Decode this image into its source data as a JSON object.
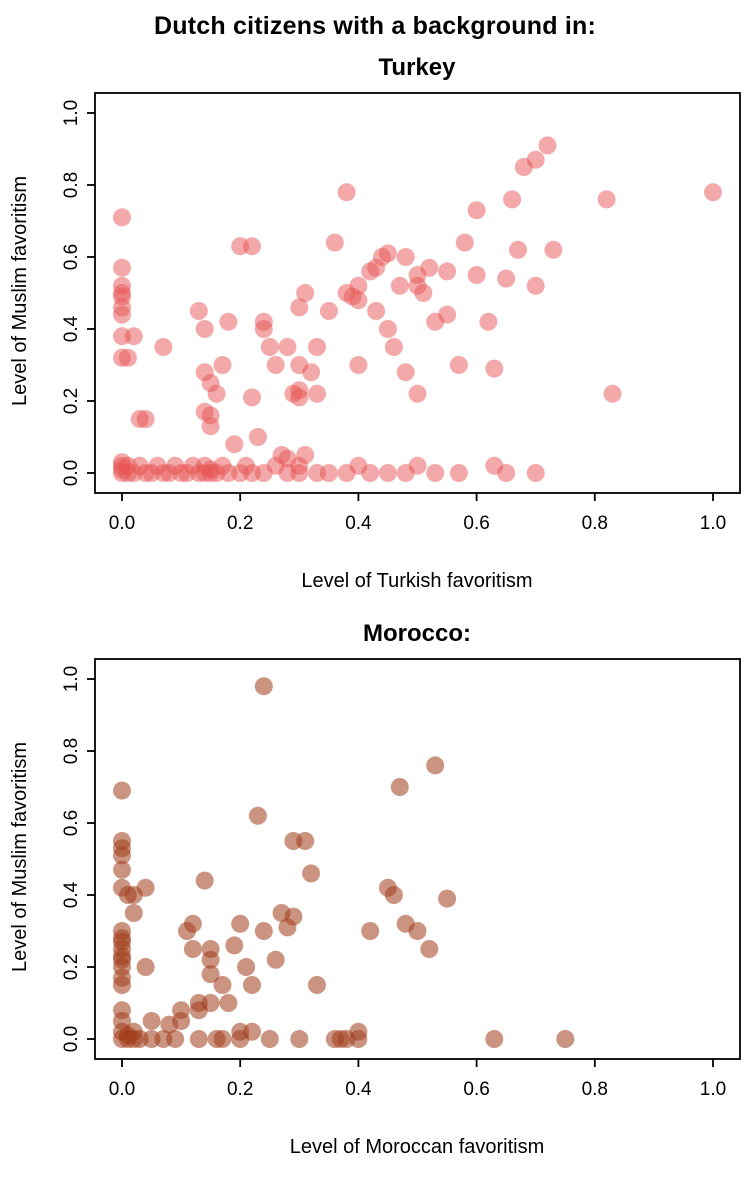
{
  "figure": {
    "title": "Dutch citizens with a background in:"
  },
  "chart_data": [
    {
      "type": "scatter",
      "title": "Turkey",
      "xlabel": "Level of Turkish favoritism",
      "ylabel": "Level of Muslim favoritism",
      "xlim": [
        0,
        1
      ],
      "ylim": [
        0,
        1
      ],
      "xticks": [
        0,
        0.2,
        0.4,
        0.6,
        0.8,
        1.0
      ],
      "yticks": [
        0,
        0.2,
        0.4,
        0.6,
        0.8,
        1.0
      ],
      "tick_labels": [
        "0.0",
        "0.2",
        "0.4",
        "0.6",
        "0.8",
        "1.0"
      ],
      "grid": false,
      "legend": "none",
      "point_color": "#e85453",
      "point_opacity": 0.5,
      "points": [
        [
          0.0,
          0.71
        ],
        [
          0.0,
          0.57
        ],
        [
          0.0,
          0.52
        ],
        [
          0.0,
          0.5
        ],
        [
          0.0,
          0.49
        ],
        [
          0.0,
          0.46
        ],
        [
          0.0,
          0.44
        ],
        [
          0.0,
          0.38
        ],
        [
          0.02,
          0.38
        ],
        [
          0.0,
          0.32
        ],
        [
          0.01,
          0.32
        ],
        [
          0.03,
          0.15
        ],
        [
          0.04,
          0.15
        ],
        [
          0.0,
          0.03
        ],
        [
          0.0,
          0.02
        ],
        [
          0.0,
          0.01
        ],
        [
          0.0,
          0.0
        ],
        [
          0.01,
          0.0
        ],
        [
          0.01,
          0.02
        ],
        [
          0.02,
          0.0
        ],
        [
          0.03,
          0.02
        ],
        [
          0.04,
          0.0
        ],
        [
          0.05,
          0.0
        ],
        [
          0.06,
          0.02
        ],
        [
          0.07,
          0.0
        ],
        [
          0.08,
          0.0
        ],
        [
          0.09,
          0.02
        ],
        [
          0.1,
          0.0
        ],
        [
          0.11,
          0.0
        ],
        [
          0.12,
          0.02
        ],
        [
          0.13,
          0.0
        ],
        [
          0.14,
          0.0
        ],
        [
          0.14,
          0.02
        ],
        [
          0.15,
          0.0
        ],
        [
          0.15,
          0.01
        ],
        [
          0.16,
          0.0
        ],
        [
          0.17,
          0.02
        ],
        [
          0.18,
          0.0
        ],
        [
          0.2,
          0.0
        ],
        [
          0.21,
          0.02
        ],
        [
          0.22,
          0.0
        ],
        [
          0.24,
          0.0
        ],
        [
          0.26,
          0.02
        ],
        [
          0.27,
          0.05
        ],
        [
          0.28,
          0.04
        ],
        [
          0.28,
          0.0
        ],
        [
          0.3,
          0.02
        ],
        [
          0.3,
          0.0
        ],
        [
          0.31,
          0.05
        ],
        [
          0.33,
          0.0
        ],
        [
          0.35,
          0.0
        ],
        [
          0.38,
          0.0
        ],
        [
          0.4,
          0.02
        ],
        [
          0.42,
          0.0
        ],
        [
          0.45,
          0.0
        ],
        [
          0.48,
          0.0
        ],
        [
          0.5,
          0.02
        ],
        [
          0.53,
          0.0
        ],
        [
          0.57,
          0.0
        ],
        [
          0.63,
          0.02
        ],
        [
          0.65,
          0.0
        ],
        [
          0.7,
          0.0
        ],
        [
          0.07,
          0.35
        ],
        [
          0.13,
          0.45
        ],
        [
          0.14,
          0.4
        ],
        [
          0.14,
          0.28
        ],
        [
          0.15,
          0.25
        ],
        [
          0.14,
          0.17
        ],
        [
          0.15,
          0.16
        ],
        [
          0.15,
          0.13
        ],
        [
          0.16,
          0.22
        ],
        [
          0.17,
          0.3
        ],
        [
          0.18,
          0.42
        ],
        [
          0.19,
          0.08
        ],
        [
          0.2,
          0.63
        ],
        [
          0.22,
          0.63
        ],
        [
          0.22,
          0.21
        ],
        [
          0.23,
          0.1
        ],
        [
          0.24,
          0.42
        ],
        [
          0.24,
          0.4
        ],
        [
          0.25,
          0.35
        ],
        [
          0.26,
          0.3
        ],
        [
          0.28,
          0.35
        ],
        [
          0.29,
          0.22
        ],
        [
          0.3,
          0.23
        ],
        [
          0.3,
          0.21
        ],
        [
          0.3,
          0.3
        ],
        [
          0.3,
          0.46
        ],
        [
          0.31,
          0.5
        ],
        [
          0.32,
          0.28
        ],
        [
          0.33,
          0.22
        ],
        [
          0.33,
          0.35
        ],
        [
          0.35,
          0.45
        ],
        [
          0.36,
          0.64
        ],
        [
          0.38,
          0.78
        ],
        [
          0.38,
          0.5
        ],
        [
          0.39,
          0.49
        ],
        [
          0.4,
          0.48
        ],
        [
          0.4,
          0.52
        ],
        [
          0.4,
          0.3
        ],
        [
          0.42,
          0.56
        ],
        [
          0.43,
          0.57
        ],
        [
          0.43,
          0.45
        ],
        [
          0.44,
          0.6
        ],
        [
          0.45,
          0.61
        ],
        [
          0.45,
          0.4
        ],
        [
          0.46,
          0.35
        ],
        [
          0.47,
          0.52
        ],
        [
          0.48,
          0.6
        ],
        [
          0.48,
          0.28
        ],
        [
          0.5,
          0.55
        ],
        [
          0.5,
          0.52
        ],
        [
          0.51,
          0.5
        ],
        [
          0.5,
          0.22
        ],
        [
          0.52,
          0.57
        ],
        [
          0.53,
          0.42
        ],
        [
          0.55,
          0.56
        ],
        [
          0.55,
          0.44
        ],
        [
          0.57,
          0.3
        ],
        [
          0.58,
          0.64
        ],
        [
          0.6,
          0.73
        ],
        [
          0.6,
          0.55
        ],
        [
          0.62,
          0.42
        ],
        [
          0.63,
          0.29
        ],
        [
          0.65,
          0.54
        ],
        [
          0.66,
          0.76
        ],
        [
          0.67,
          0.62
        ],
        [
          0.68,
          0.85
        ],
        [
          0.7,
          0.87
        ],
        [
          0.72,
          0.91
        ],
        [
          0.7,
          0.52
        ],
        [
          0.73,
          0.62
        ],
        [
          0.82,
          0.76
        ],
        [
          0.83,
          0.22
        ],
        [
          1.0,
          0.78
        ]
      ]
    },
    {
      "type": "scatter",
      "title": "Morocco:",
      "xlabel": "Level of Moroccan favoritism",
      "ylabel": "Level of Muslim favoritism",
      "xlim": [
        0,
        1
      ],
      "ylim": [
        0,
        1
      ],
      "xticks": [
        0,
        0.2,
        0.4,
        0.6,
        0.8,
        1.0
      ],
      "yticks": [
        0,
        0.2,
        0.4,
        0.6,
        0.8,
        1.0
      ],
      "tick_labels": [
        "0.0",
        "0.2",
        "0.4",
        "0.6",
        "0.8",
        "1.0"
      ],
      "grid": false,
      "legend": "none",
      "point_color": "#a03c19",
      "point_opacity": 0.55,
      "points": [
        [
          0.0,
          0.69
        ],
        [
          0.0,
          0.55
        ],
        [
          0.0,
          0.53
        ],
        [
          0.0,
          0.51
        ],
        [
          0.0,
          0.47
        ],
        [
          0.0,
          0.42
        ],
        [
          0.01,
          0.4
        ],
        [
          0.02,
          0.4
        ],
        [
          0.02,
          0.35
        ],
        [
          0.0,
          0.3
        ],
        [
          0.0,
          0.28
        ],
        [
          0.0,
          0.27
        ],
        [
          0.0,
          0.25
        ],
        [
          0.0,
          0.23
        ],
        [
          0.0,
          0.22
        ],
        [
          0.0,
          0.2
        ],
        [
          0.0,
          0.17
        ],
        [
          0.0,
          0.15
        ],
        [
          0.0,
          0.08
        ],
        [
          0.0,
          0.05
        ],
        [
          0.0,
          0.02
        ],
        [
          0.0,
          0.0
        ],
        [
          0.01,
          0.0
        ],
        [
          0.01,
          0.01
        ],
        [
          0.02,
          0.0
        ],
        [
          0.02,
          0.02
        ],
        [
          0.03,
          0.0
        ],
        [
          0.04,
          0.42
        ],
        [
          0.04,
          0.2
        ],
        [
          0.05,
          0.05
        ],
        [
          0.05,
          0.0
        ],
        [
          0.07,
          0.0
        ],
        [
          0.08,
          0.04
        ],
        [
          0.09,
          0.0
        ],
        [
          0.1,
          0.08
        ],
        [
          0.1,
          0.05
        ],
        [
          0.11,
          0.3
        ],
        [
          0.12,
          0.32
        ],
        [
          0.12,
          0.25
        ],
        [
          0.13,
          0.1
        ],
        [
          0.13,
          0.08
        ],
        [
          0.13,
          0.0
        ],
        [
          0.14,
          0.44
        ],
        [
          0.15,
          0.25
        ],
        [
          0.15,
          0.22
        ],
        [
          0.15,
          0.18
        ],
        [
          0.15,
          0.1
        ],
        [
          0.16,
          0.0
        ],
        [
          0.17,
          0.0
        ],
        [
          0.17,
          0.15
        ],
        [
          0.18,
          0.1
        ],
        [
          0.19,
          0.26
        ],
        [
          0.2,
          0.0
        ],
        [
          0.2,
          0.02
        ],
        [
          0.2,
          0.32
        ],
        [
          0.21,
          0.2
        ],
        [
          0.22,
          0.15
        ],
        [
          0.22,
          0.02
        ],
        [
          0.23,
          0.62
        ],
        [
          0.24,
          0.98
        ],
        [
          0.24,
          0.3
        ],
        [
          0.25,
          0.0
        ],
        [
          0.26,
          0.22
        ],
        [
          0.27,
          0.35
        ],
        [
          0.28,
          0.31
        ],
        [
          0.29,
          0.34
        ],
        [
          0.29,
          0.55
        ],
        [
          0.3,
          0.0
        ],
        [
          0.31,
          0.55
        ],
        [
          0.32,
          0.46
        ],
        [
          0.33,
          0.15
        ],
        [
          0.36,
          0.0
        ],
        [
          0.37,
          0.0
        ],
        [
          0.38,
          0.0
        ],
        [
          0.4,
          0.0
        ],
        [
          0.4,
          0.02
        ],
        [
          0.42,
          0.3
        ],
        [
          0.45,
          0.42
        ],
        [
          0.46,
          0.4
        ],
        [
          0.47,
          0.7
        ],
        [
          0.48,
          0.32
        ],
        [
          0.5,
          0.3
        ],
        [
          0.52,
          0.25
        ],
        [
          0.53,
          0.76
        ],
        [
          0.55,
          0.39
        ],
        [
          0.63,
          0.0
        ],
        [
          0.75,
          0.0
        ]
      ]
    }
  ]
}
